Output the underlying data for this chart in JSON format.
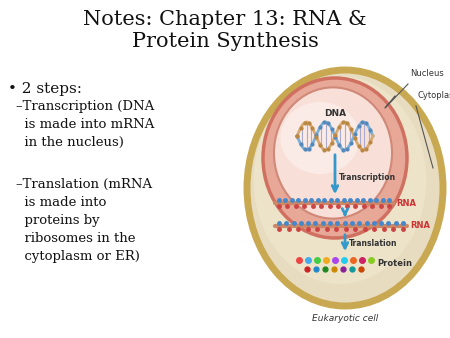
{
  "title": "Notes: Chapter 13: RNA &\nProtein Synthesis",
  "title_fontsize": 15,
  "title_color": "#111111",
  "background_color": "#ffffff",
  "bullet_text": "• 2 steps:",
  "bullet_fontsize": 11,
  "sub1_text": "–Transcription (DNA\n  is made into mRNA\n  in the nucleus)",
  "sub2_text": "–Translation (mRNA\n  is made into\n  proteins by\n  ribosomes in the\n  cytoplasm or ER)",
  "sub_fontsize": 9.5,
  "text_color": "#111111",
  "cell_label": "Eukaryotic cell",
  "nucleus_label": "Nucleus",
  "cytoplasm_label": "Cytoplasm",
  "dna_label": "DNA",
  "transcription_label": "Transcription",
  "translation_label": "Translation",
  "rna_label1": "RNA",
  "rna_label2": "RNA",
  "protein_label": "Protein",
  "outer_cell_edge": "#c8a850",
  "inner_nucleus_edge": "#d07060",
  "nucleus_fill": "#f0c0b0",
  "cytoplasm_fill": "#e8dcc0",
  "outer_gradient_color": "#d4bc78"
}
